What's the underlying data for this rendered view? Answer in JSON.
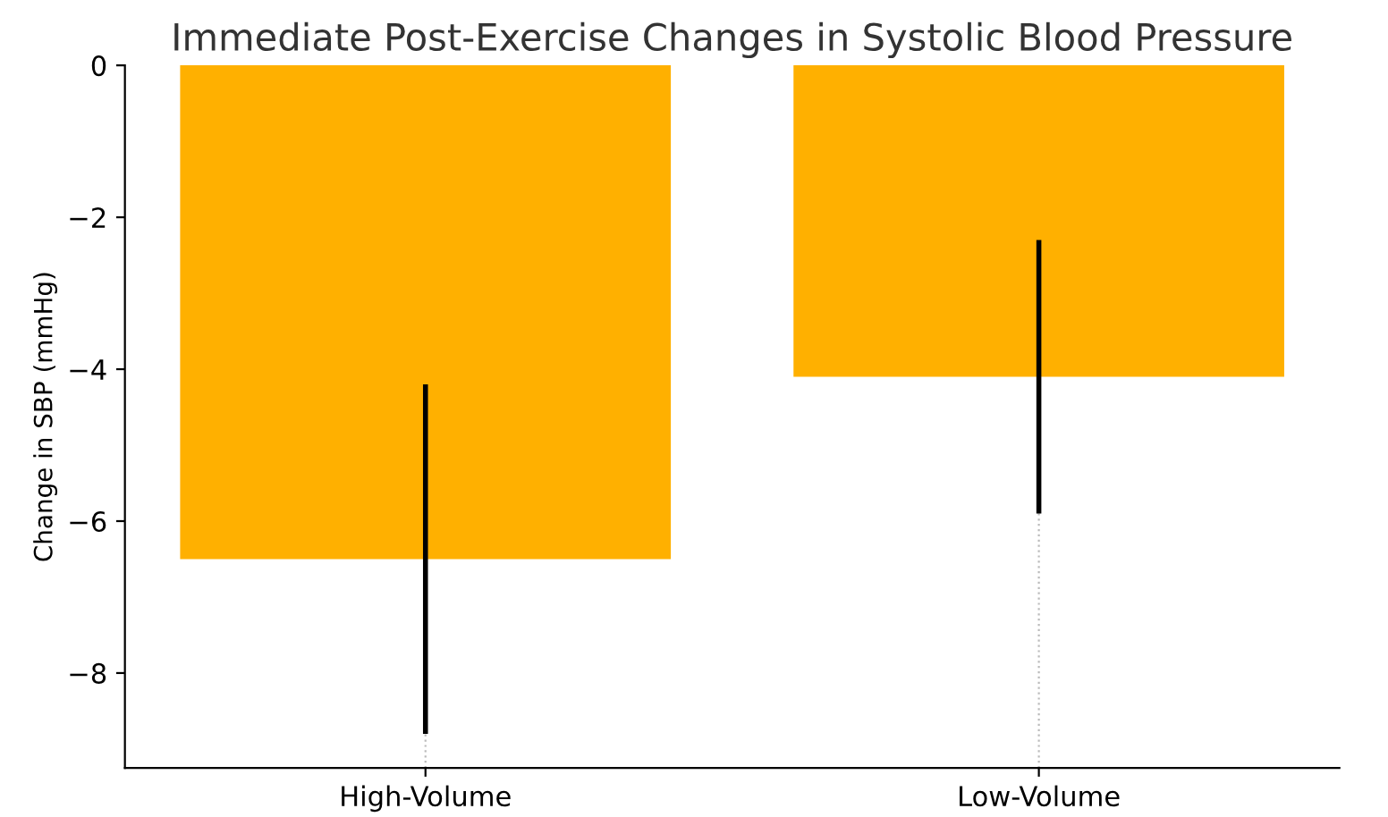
{
  "chart_data": {
    "type": "bar",
    "title": "Immediate Post-Exercise Changes in Systolic Blood Pressure",
    "ylabel": "Change in SBP (mmHg)",
    "categories": [
      "High-Volume",
      "Low-Volume"
    ],
    "values": [
      -6.5,
      -4.1
    ],
    "errors": [
      2.3,
      1.8
    ],
    "color": "#ffb000",
    "ylim": [
      -9.25,
      0
    ],
    "yticks": [
      {
        "value": -8,
        "label": "−8"
      },
      {
        "value": -6,
        "label": "−6"
      },
      {
        "value": -4,
        "label": "−4"
      },
      {
        "value": -2,
        "label": "−2"
      },
      0
    ],
    "grid": "x"
  }
}
